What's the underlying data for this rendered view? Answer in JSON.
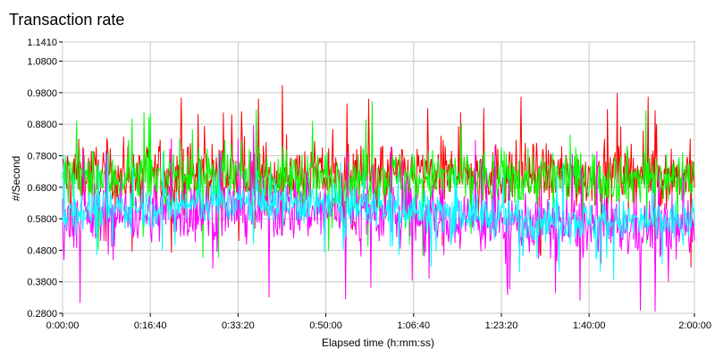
{
  "chart_data": {
    "type": "line",
    "title": "Transaction rate",
    "xlabel": "Elapsed time (h:mm:ss)",
    "ylabel": "#/Second",
    "xlim": [
      0,
      7200
    ],
    "ylim": [
      0.28,
      1.141
    ],
    "x_ticks": [
      {
        "value": 0,
        "label": "0:00:00"
      },
      {
        "value": 1000,
        "label": "0:16:40"
      },
      {
        "value": 2000,
        "label": "0:33:20"
      },
      {
        "value": 3000,
        "label": "0:50:00"
      },
      {
        "value": 4000,
        "label": "1:06:40"
      },
      {
        "value": 5000,
        "label": "1:23:20"
      },
      {
        "value": 6000,
        "label": "1:40:00"
      },
      {
        "value": 7200,
        "label": "2:00:00"
      }
    ],
    "y_ticks": [
      {
        "value": 0.28,
        "label": "0.2800"
      },
      {
        "value": 0.38,
        "label": "0.3800"
      },
      {
        "value": 0.48,
        "label": "0.4800"
      },
      {
        "value": 0.58,
        "label": "0.5800"
      },
      {
        "value": 0.68,
        "label": "0.6800"
      },
      {
        "value": 0.78,
        "label": "0.7800"
      },
      {
        "value": 0.88,
        "label": "0.8800"
      },
      {
        "value": 0.98,
        "label": "0.9800"
      },
      {
        "value": 1.08,
        "label": "1.0800"
      },
      {
        "value": 1.141,
        "label": "1.1410"
      }
    ],
    "grid": true,
    "series": [
      {
        "color": "#ff0000",
        "mean": 0.72,
        "spread": 0.09
      },
      {
        "color": "#00ff00",
        "mean": 0.71,
        "spread": 0.08
      },
      {
        "color": "#ff00ff",
        "mean": 0.58,
        "spread": 0.09
      },
      {
        "color": "#00ffff",
        "mean": 0.6,
        "spread": 0.06
      }
    ],
    "samples": 900
  }
}
